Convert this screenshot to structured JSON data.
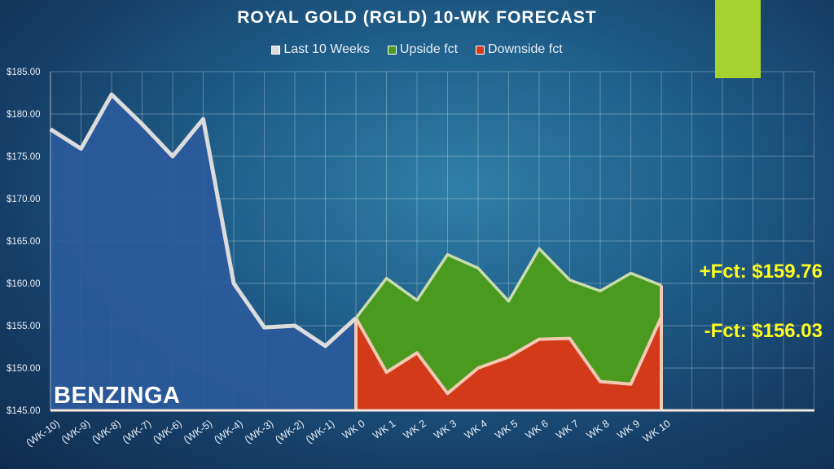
{
  "colors": {
    "accent": "#a6d12e",
    "last_line": "#dcdcdc",
    "upside_fill": "#4a9a1f",
    "downside_fill": "#d23a1a",
    "forecast_stroke": "#f2c9b3",
    "fct_label": "#ffff1e"
  },
  "watermark": "BENZINGA",
  "labels": {
    "upside": "+Fct: $159.76",
    "downside": "-Fct: $156.03"
  },
  "chart_data": {
    "type": "area",
    "title": "ROYAL GOLD (RGLD) 10-WK FORECAST",
    "categories": [
      "(WK-10)",
      "(WK-9)",
      "(WK-8)",
      "(WK-7)",
      "(WK-6)",
      "(WK-5)",
      "(WK-4)",
      "(WK-3)",
      "(WK-2)",
      "(WK-1)",
      "WK 0",
      "WK 1",
      "WK 2",
      "WK 3",
      "WK 4",
      "WK 5",
      "WK 6",
      "WK 7",
      "WK 8",
      "WK 9",
      "WK 10"
    ],
    "ylim": [
      145,
      185
    ],
    "y_ticks": [
      "$145.00",
      "$150.00",
      "$155.00",
      "$160.00",
      "$165.00",
      "$170.00",
      "$175.00",
      "$180.00",
      "$185.00"
    ],
    "grid": true,
    "legend_position": "top-center",
    "series": [
      {
        "name": "Last 10 Weeks",
        "values": [
          178.2,
          175.9,
          182.3,
          178.8,
          175.0,
          179.4,
          160.0,
          154.8,
          155.0,
          152.6,
          155.9,
          null,
          null,
          null,
          null,
          null,
          null,
          null,
          null,
          null,
          null
        ]
      },
      {
        "name": "Upside fct",
        "values": [
          null,
          null,
          null,
          null,
          null,
          null,
          null,
          null,
          null,
          null,
          155.9,
          160.6,
          158.0,
          163.4,
          161.8,
          157.9,
          164.1,
          160.4,
          159.1,
          161.2,
          159.76
        ]
      },
      {
        "name": "Downside fct",
        "values": [
          null,
          null,
          null,
          null,
          null,
          null,
          null,
          null,
          null,
          null,
          155.9,
          149.5,
          151.8,
          147.0,
          150.0,
          151.3,
          153.4,
          153.5,
          148.4,
          148.1,
          156.03
        ]
      }
    ]
  }
}
